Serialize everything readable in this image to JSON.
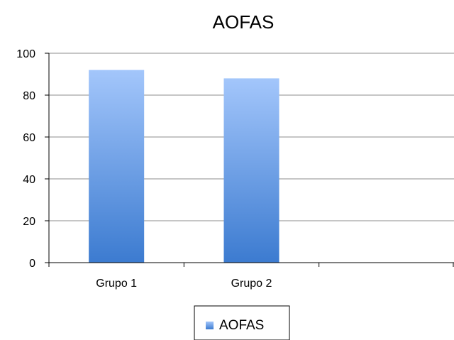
{
  "chart_data": {
    "type": "bar",
    "title": "AOFAS",
    "categories": [
      "Grupo 1",
      "Grupo 2",
      ""
    ],
    "series": [
      {
        "name": "AOFAS",
        "values": [
          92,
          88,
          null
        ]
      }
    ],
    "ylim": [
      0,
      100
    ],
    "yticks": [
      "0",
      "20",
      "40",
      "60",
      "80",
      "100"
    ],
    "grid": true,
    "legend": "bottom"
  },
  "colors": {
    "bar_top": "#a3c6fb",
    "bar_bottom": "#3c7bd0",
    "grid": "#8c8c8c",
    "axis": "#000000"
  }
}
